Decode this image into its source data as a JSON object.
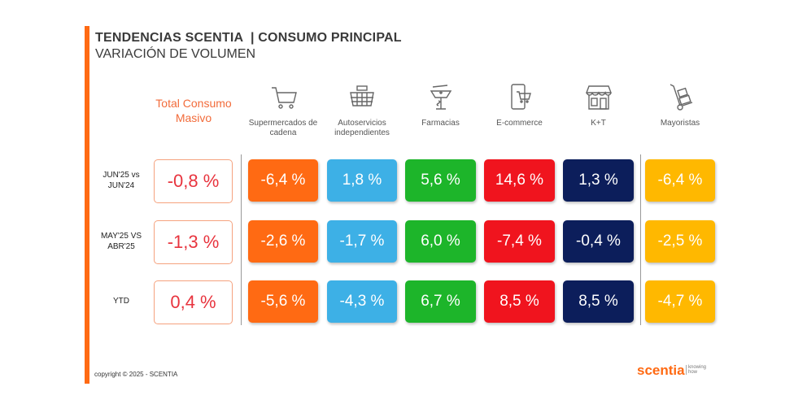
{
  "header": {
    "title": "TENDENCIAS SCENTIA  | CONSUMO PRINCIPAL",
    "subtitle": "VARIACIÓN DE VOLUMEN"
  },
  "total_header": "Total Consumo Masivo",
  "columns": [
    {
      "label": "Supermercados de cadena",
      "icon": "shopping-cart-icon",
      "color": "#FF6A13"
    },
    {
      "label": "Autoservicios independientes",
      "icon": "basket-icon",
      "color": "#3DB0E6"
    },
    {
      "label": "Farmacias",
      "icon": "pharmacy-icon",
      "color": "#1DB52A"
    },
    {
      "label": "E-commerce",
      "icon": "mobile-cart-icon",
      "color": "#F0141E"
    },
    {
      "label": "K+T",
      "icon": "store-icon",
      "color": "#0C1E5B"
    },
    {
      "label": "Mayoristas",
      "icon": "hand-truck-icon",
      "color": "#FFB800"
    }
  ],
  "rows": [
    {
      "label": "JUN'25 vs JUN'24",
      "total": "-0,8 %",
      "values": [
        "-6,4 %",
        "1,8 %",
        "5,6 %",
        "14,6 %",
        "1,3 %",
        "-6,4 %"
      ]
    },
    {
      "label": "MAY'25 VS ABR'25",
      "total": "-1,3 %",
      "values": [
        "-2,6 %",
        "-1,7 %",
        "6,0 %",
        "-7,4 %",
        "-0,4 %",
        "-2,5 %"
      ]
    },
    {
      "label": "YTD",
      "total": "0,4 %",
      "values": [
        "-5,6 %",
        "-4,3 %",
        "6,7 %",
        "8,5 %",
        "8,5 %",
        "-4,7 %"
      ]
    }
  ],
  "footer": {
    "copyright": "copyright © 2025 - SCENTIA",
    "logo": "scentia",
    "tagline": "knowing how"
  }
}
